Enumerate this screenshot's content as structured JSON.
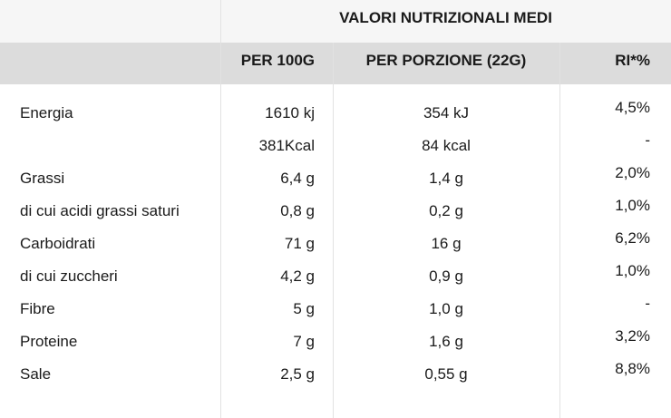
{
  "header": {
    "title": "VALORI NUTRIZIONALI MEDI"
  },
  "table": {
    "columns": [
      null,
      "PER 100G",
      "PER PORZIONE (22G)",
      "RI*%"
    ],
    "rows": [
      [
        "Energia",
        "1610 kj",
        "354 kJ",
        "4,5%"
      ],
      [
        null,
        "381Kcal",
        "84 kcal",
        "-"
      ],
      [
        "Grassi",
        "6,4 g",
        "1,4 g",
        "2,0%"
      ],
      [
        "di cui acidi grassi saturi",
        "0,8 g",
        "0,2 g",
        "1,0%"
      ],
      [
        "Carboidrati",
        "71 g",
        "16 g",
        "6,2%"
      ],
      [
        "di cui zuccheri",
        "4,2 g",
        "0,9 g",
        "1,0%"
      ],
      [
        "Fibre",
        "5 g",
        "1,0 g",
        "-"
      ],
      [
        "Proteine",
        "7 g",
        "1,6 g",
        "3,2%"
      ],
      [
        "Sale",
        "2,5 g",
        "0,55 g",
        "8,8%"
      ]
    ]
  }
}
